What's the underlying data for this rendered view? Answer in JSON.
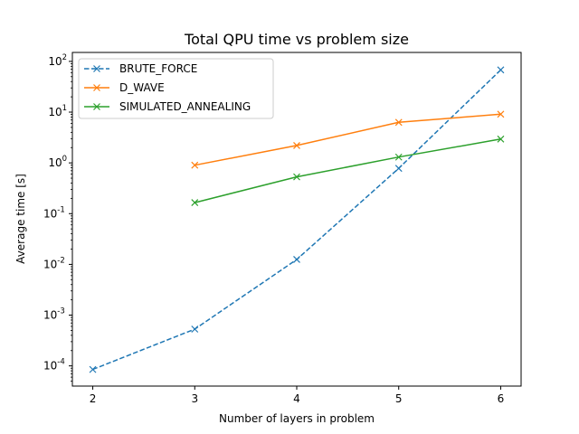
{
  "chart_data": {
    "type": "line",
    "title": "Total QPU time vs problem size",
    "xlabel": "Number of layers in problem",
    "ylabel": "Average time [s]",
    "xlim": [
      1.8,
      6.2
    ],
    "ylim": [
      4e-05,
      150
    ],
    "yscale": "log",
    "xticks": [
      2,
      3,
      4,
      5,
      6
    ],
    "yticks": [
      {
        "value": 0.0001,
        "exp": "-4"
      },
      {
        "value": 0.001,
        "exp": "-3"
      },
      {
        "value": 0.01,
        "exp": "-2"
      },
      {
        "value": 0.1,
        "exp": "-1"
      },
      {
        "value": 1.0,
        "exp": "0"
      },
      {
        "value": 10.0,
        "exp": "1"
      },
      {
        "value": 100.0,
        "exp": "2"
      }
    ],
    "tick_base": "10",
    "grid": false,
    "legend_position": "upper-left",
    "series": [
      {
        "name": "BRUTE_FORCE",
        "color": "#1f77b4",
        "dashed": true,
        "marker": "x",
        "x": [
          2,
          3,
          4,
          5,
          6
        ],
        "y": [
          8.5e-05,
          0.00053,
          0.0125,
          0.78,
          68
        ]
      },
      {
        "name": "D_WAVE",
        "color": "#ff7f0e",
        "dashed": false,
        "marker": "x",
        "x": [
          3,
          4,
          5,
          6
        ],
        "y": [
          0.9,
          2.2,
          6.3,
          9.1
        ]
      },
      {
        "name": "SIMULATED_ANNEALING",
        "color": "#2ca02c",
        "dashed": false,
        "marker": "x",
        "x": [
          3,
          4,
          5,
          6
        ],
        "y": [
          0.165,
          0.53,
          1.3,
          2.95
        ]
      }
    ]
  }
}
